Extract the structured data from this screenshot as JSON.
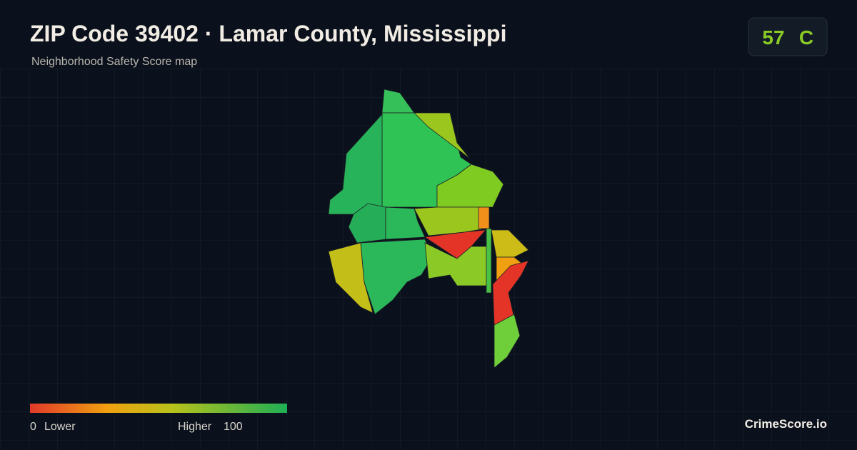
{
  "header": {
    "title": "ZIP Code 39402 · Lamar County, Mississippi",
    "subtitle": "Neighborhood Safety Score map"
  },
  "score": {
    "value": 57,
    "grade": "C"
  },
  "legend": {
    "min": 0,
    "min_label": "Lower",
    "max_label": "Higher",
    "max": 100
  },
  "brand": "CrimeScore.io"
}
